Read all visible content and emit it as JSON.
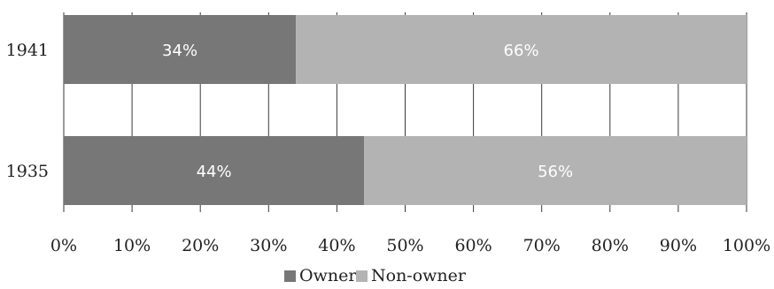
{
  "chart_data": {
    "type": "bar",
    "orientation": "horizontal",
    "stacked": true,
    "categories": [
      "1941",
      "1935"
    ],
    "series": [
      {
        "name": "Owner",
        "values": [
          34,
          44
        ],
        "color": "#777777"
      },
      {
        "name": "Non-owner",
        "values": [
          66,
          56
        ],
        "color": "#b3b3b4"
      }
    ],
    "data_labels": [
      [
        "34%",
        "44%"
      ],
      [
        "66%",
        "56%"
      ]
    ],
    "xlim": [
      0,
      100
    ],
    "x_ticks": [
      0,
      10,
      20,
      30,
      40,
      50,
      60,
      70,
      80,
      90,
      100
    ],
    "x_tick_labels": [
      "0%",
      "10%",
      "20%",
      "30%",
      "40%",
      "50%",
      "60%",
      "70%",
      "80%",
      "90%",
      "100%"
    ],
    "grid": "vertical",
    "legend_position": "bottom-center",
    "title": "",
    "xlabel": "",
    "ylabel": ""
  }
}
